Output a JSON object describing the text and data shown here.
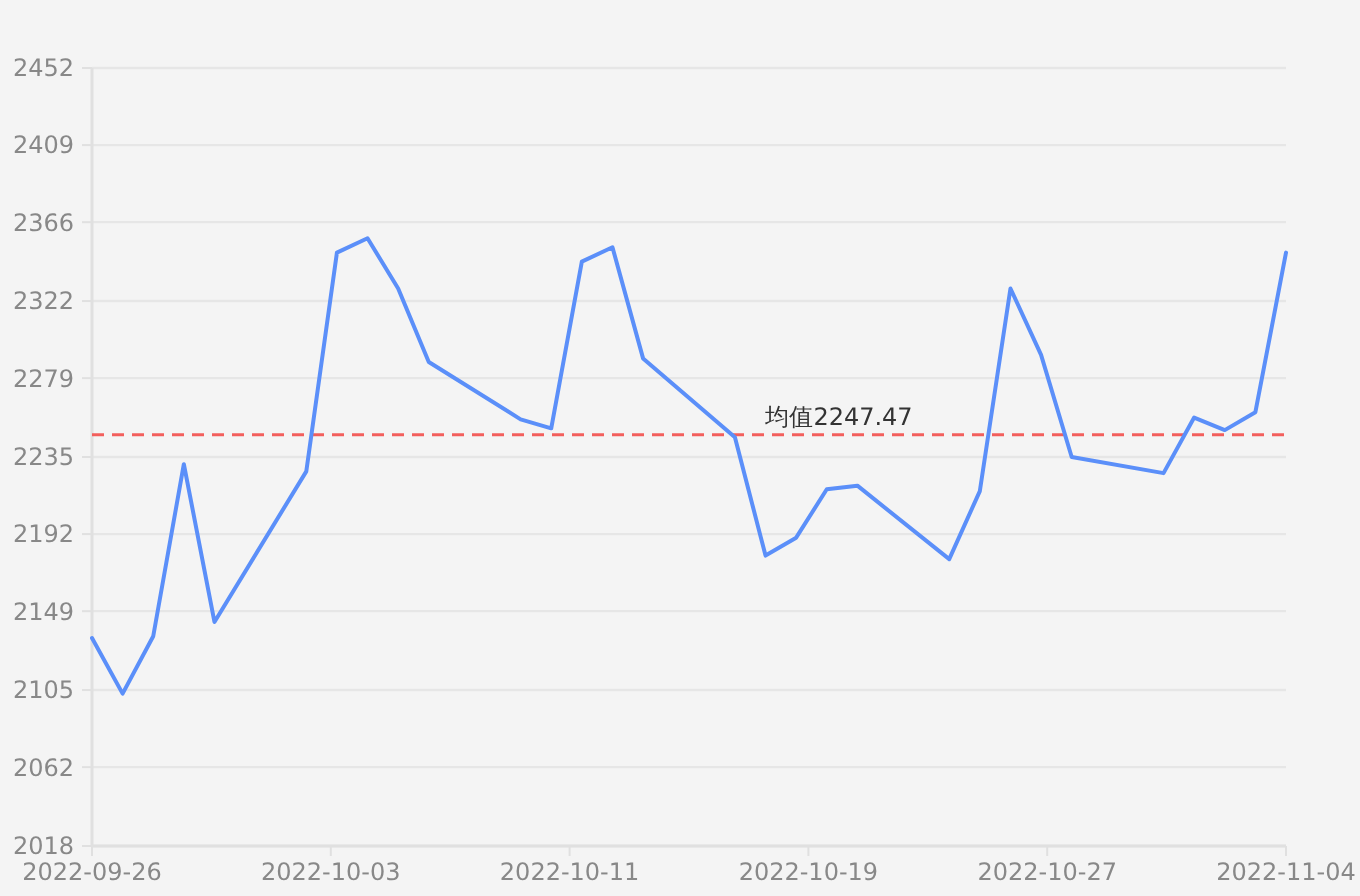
{
  "chart_data": {
    "type": "line",
    "x": [
      "2022-09-26",
      "2022-09-27",
      "2022-09-28",
      "2022-09-29",
      "2022-09-30",
      "2022-10-03",
      "2022-10-04",
      "2022-10-05",
      "2022-10-06",
      "2022-10-07",
      "2022-10-10",
      "2022-10-11",
      "2022-10-12",
      "2022-10-13",
      "2022-10-14",
      "2022-10-17",
      "2022-10-18",
      "2022-10-19",
      "2022-10-20",
      "2022-10-21",
      "2022-10-24",
      "2022-10-25",
      "2022-10-26",
      "2022-10-27",
      "2022-10-28",
      "2022-10-31",
      "2022-11-01",
      "2022-11-02",
      "2022-11-03",
      "2022-11-04"
    ],
    "series": [
      {
        "color": "#5b8ff9",
        "values": [
          2134,
          2103,
          2135,
          2231,
          2143,
          2227,
          2349,
          2357,
          2329,
          2288,
          2256,
          2251,
          2344,
          2352,
          2290,
          2246,
          2180,
          2190,
          2217,
          2219,
          2178,
          2216,
          2329,
          2292,
          2235,
          2226,
          2257,
          2250,
          2260,
          2349
        ]
      }
    ],
    "xlim": [
      "2022-09-26",
      "2022-11-04"
    ],
    "xticks": [
      {
        "value": "2022-09-26",
        "label": "2022-09-26"
      },
      {
        "value": "2022-10-03T19:12",
        "label": "2022-10-03"
      },
      {
        "value": "2022-10-11T14:24",
        "label": "2022-10-11"
      },
      {
        "value": "2022-10-19T09:36",
        "label": "2022-10-19"
      },
      {
        "value": "2022-10-27T04:48",
        "label": "2022-10-27"
      },
      {
        "value": "2022-11-04",
        "label": "2022-11-04"
      }
    ],
    "ylim": [
      2018,
      2452
    ],
    "yticks": [
      2018,
      2062,
      2105,
      2149,
      2192,
      2235,
      2279,
      2322,
      2366,
      2409,
      2452
    ],
    "grid": "y",
    "ref_lines": [
      {
        "axis": "y",
        "value": 2247.47,
        "label": "均值2247.47",
        "color": "#f25f5c",
        "line_style": "dashed"
      }
    ]
  }
}
